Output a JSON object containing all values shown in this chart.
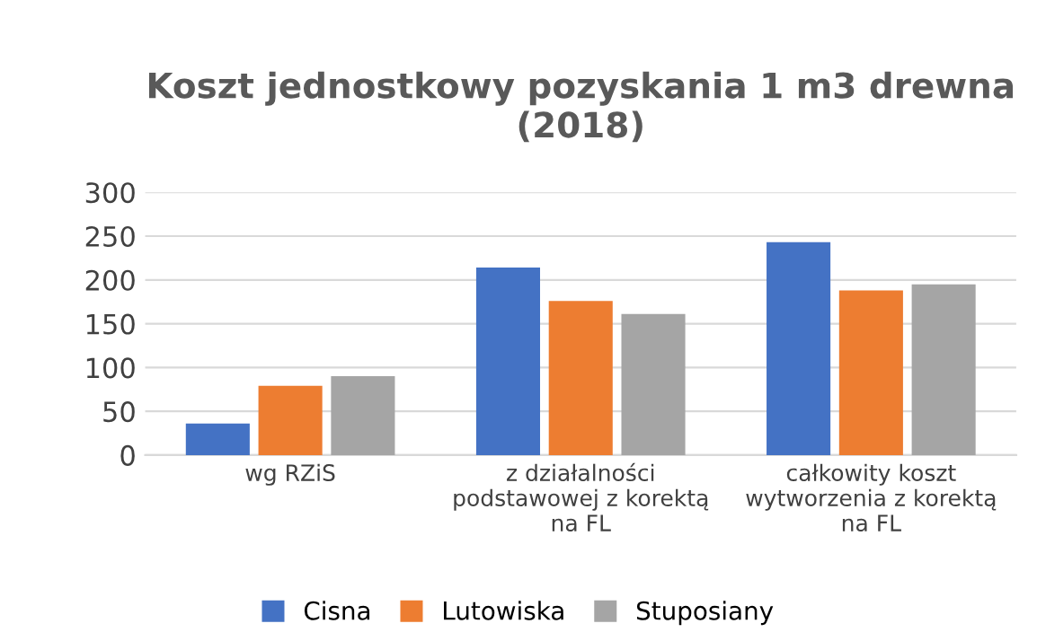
{
  "chart_data": {
    "type": "bar",
    "title": "Koszt jednostkowy pozyskania 1 m3 drewna\n(2018)",
    "categories": [
      "wg RZiS",
      "z działalności\npodstawowej z korektą\nna FL",
      "całkowity koszt\nwytworzenia z korektą\nna FL"
    ],
    "series": [
      {
        "name": "Cisna",
        "color": "#4472c4",
        "values": [
          36,
          214,
          243
        ]
      },
      {
        "name": "Lutowiska",
        "color": "#ed7d31",
        "values": [
          79,
          176,
          188
        ]
      },
      {
        "name": "Stuposiany",
        "color": "#a5a5a5",
        "values": [
          90,
          161,
          195
        ]
      }
    ],
    "ylim": [
      0,
      300
    ],
    "yticks": [
      0,
      50,
      100,
      150,
      200,
      250,
      300
    ],
    "grid": "y",
    "legend": "bottom"
  }
}
